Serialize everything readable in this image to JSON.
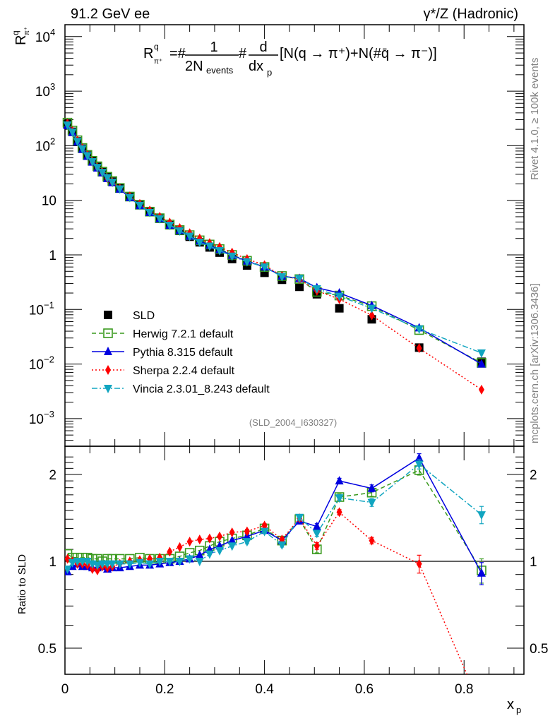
{
  "header": {
    "left": "91.2 GeV ee",
    "right": "γ*/Z (Hadronic)"
  },
  "side_labels": {
    "rivet": "Rivet 4.1.0, ≥ 100k events",
    "mcplots": "mcplots.cern.ch [arXiv:1306.3436]"
  },
  "formula": {
    "lhs": "R",
    "lhs_sup": "q",
    "lhs_sub": "π⁺",
    "eq": "=#",
    "frac1_num": "1",
    "frac1_den": "2N",
    "frac1_den_sub": "events",
    "hash2": "#",
    "frac2_num": "d",
    "frac2_den": "dx",
    "frac2_den_sub": "p",
    "rhs": "[N(q → π⁺)+N(#q̄ → π⁻)]"
  },
  "analysis_id": "(SLD_2004_I630327)",
  "colors": {
    "SLD": "#000000",
    "Herwig": "#3a9a1e",
    "Pythia": "#0000e0",
    "Sherpa": "#ff0000",
    "Vincia": "#11a5c0"
  },
  "chart_data": [
    {
      "type": "scatter",
      "panel": "main",
      "title": "",
      "ylabel": "R^q_{π+}",
      "yscale": "log",
      "ylim": [
        0.0003,
        15000
      ],
      "xlim": [
        0,
        0.92
      ],
      "yticks": [
        {
          "value": 10000,
          "label": "10",
          "exp": "4"
        },
        {
          "value": 1000,
          "label": "10",
          "exp": "3"
        },
        {
          "value": 100,
          "label": "10",
          "exp": "2"
        },
        {
          "value": 10,
          "label": "10",
          "exp": ""
        },
        {
          "value": 1,
          "label": "1",
          "exp": ""
        },
        {
          "value": 0.1,
          "label": "10",
          "exp": "−1"
        },
        {
          "value": 0.01,
          "label": "10",
          "exp": "−2"
        },
        {
          "value": 0.001,
          "label": "10",
          "exp": "−3"
        }
      ],
      "legend": {
        "placement": "bottom-left",
        "entries": [
          {
            "key": "SLD",
            "label": "SLD",
            "marker": "square",
            "line": "none"
          },
          {
            "key": "Herwig",
            "label": "Herwig 7.2.1 default",
            "marker": "open-square",
            "line": "dashed"
          },
          {
            "key": "Pythia",
            "label": "Pythia 8.315 default",
            "marker": "triangle-up",
            "line": "solid"
          },
          {
            "key": "Sherpa",
            "label": "Sherpa 2.2.4 default",
            "marker": "diamond",
            "line": "dotted"
          },
          {
            "key": "Vincia",
            "label": "Vincia 2.3.01_8.243 default",
            "marker": "triangle-down",
            "line": "dashdot"
          }
        ]
      },
      "x": [
        0.005,
        0.015,
        0.025,
        0.035,
        0.045,
        0.055,
        0.065,
        0.075,
        0.085,
        0.095,
        0.11,
        0.13,
        0.15,
        0.17,
        0.19,
        0.21,
        0.23,
        0.25,
        0.27,
        0.29,
        0.31,
        0.335,
        0.365,
        0.4,
        0.435,
        0.47,
        0.505,
        0.55,
        0.615,
        0.71,
        0.835
      ],
      "series": [
        {
          "name": "SLD",
          "values": [
            250,
            180,
            120,
            88,
            66,
            52,
            41,
            33,
            26.5,
            22,
            16.5,
            11.5,
            8.2,
            6.1,
            4.6,
            3.5,
            2.75,
            2.15,
            1.7,
            1.37,
            1.1,
            0.84,
            0.64,
            0.47,
            0.35,
            0.26,
            0.19,
            0.105,
            0.066,
            0.02,
            0.011
          ]
        },
        {
          "name": "Herwig",
          "values": [
            265,
            190,
            126,
            91,
            68,
            53,
            42,
            33.5,
            27,
            22.5,
            16.8,
            11.7,
            8.3,
            6.2,
            4.7,
            3.6,
            2.85,
            2.3,
            1.85,
            1.55,
            1.28,
            1.0,
            0.78,
            0.6,
            0.41,
            0.36,
            0.21,
            0.18,
            0.115,
            0.042,
            0.0105
          ]
        },
        {
          "name": "Pythia",
          "values": [
            235,
            175,
            118,
            86,
            64,
            50,
            39,
            32,
            25,
            21,
            16,
            11.2,
            8.0,
            6.0,
            4.6,
            3.5,
            2.8,
            2.2,
            1.8,
            1.5,
            1.25,
            0.98,
            0.77,
            0.6,
            0.41,
            0.37,
            0.25,
            0.2,
            0.118,
            0.046,
            0.01
          ]
        },
        {
          "name": "Sherpa",
          "values": [
            255,
            185,
            125,
            90,
            67,
            51,
            40,
            32.5,
            25.5,
            21.5,
            16.5,
            11.8,
            8.6,
            6.5,
            5.0,
            3.9,
            3.1,
            2.5,
            2.0,
            1.65,
            1.4,
            1.1,
            0.84,
            0.65,
            0.41,
            0.36,
            0.22,
            0.155,
            0.078,
            0.0195,
            0.0034
          ]
        },
        {
          "name": "Vincia",
          "values": [
            240,
            178,
            120,
            88,
            66,
            51,
            40,
            32.5,
            26,
            21.5,
            16.2,
            11.3,
            8.1,
            6.0,
            4.6,
            3.5,
            2.75,
            2.2,
            1.7,
            1.45,
            1.2,
            0.95,
            0.75,
            0.6,
            0.4,
            0.37,
            0.24,
            0.175,
            0.105,
            0.044,
            0.016
          ]
        }
      ]
    },
    {
      "type": "scatter",
      "panel": "ratio",
      "ylabel": "Ratio to SLD",
      "xlabel": "x_p",
      "yscale": "log",
      "ylim": [
        0.42,
        2.35
      ],
      "xlim": [
        0,
        0.92
      ],
      "xticks": [
        "0",
        "0.2",
        "0.4",
        "0.6",
        "0.8"
      ],
      "xtick_values": [
        0,
        0.2,
        0.4,
        0.6,
        0.8
      ],
      "yticks": [
        {
          "value": 0.5,
          "label": "0.5"
        },
        {
          "value": 1,
          "label": "1"
        },
        {
          "value": 2,
          "label": "2"
        }
      ],
      "reference_line": 1,
      "x": [
        0.005,
        0.015,
        0.025,
        0.035,
        0.045,
        0.055,
        0.065,
        0.075,
        0.085,
        0.095,
        0.11,
        0.13,
        0.15,
        0.17,
        0.19,
        0.21,
        0.23,
        0.25,
        0.27,
        0.29,
        0.31,
        0.335,
        0.365,
        0.4,
        0.435,
        0.47,
        0.505,
        0.55,
        0.615,
        0.71,
        0.835
      ],
      "series": [
        {
          "name": "Herwig",
          "values": [
            1.06,
            1.03,
            1.03,
            1.03,
            1.03,
            1.02,
            1.02,
            1.0,
            1.02,
            1.02,
            1.02,
            1.02,
            1.03,
            1.02,
            1.02,
            1.02,
            1.04,
            1.07,
            1.09,
            1.13,
            1.17,
            1.2,
            1.23,
            1.3,
            1.18,
            1.4,
            1.1,
            1.67,
            1.73,
            2.07,
            0.93
          ],
          "errors": [
            0.01,
            0.01,
            0.01,
            0.01,
            0.01,
            0.01,
            0.01,
            0.01,
            0.01,
            0.01,
            0.01,
            0.01,
            0.01,
            0.01,
            0.01,
            0.01,
            0.01,
            0.01,
            0.01,
            0.01,
            0.01,
            0.01,
            0.02,
            0.02,
            0.02,
            0.03,
            0.03,
            0.04,
            0.05,
            0.08,
            0.09
          ]
        },
        {
          "name": "Pythia",
          "values": [
            0.92,
            0.96,
            0.98,
            0.96,
            0.96,
            0.95,
            0.95,
            0.96,
            0.94,
            0.95,
            0.95,
            0.96,
            0.97,
            0.97,
            0.98,
            0.99,
            1.0,
            1.02,
            1.05,
            1.1,
            1.13,
            1.18,
            1.22,
            1.28,
            1.18,
            1.38,
            1.32,
            1.9,
            1.79,
            2.28,
            0.91
          ],
          "errors": [
            0.01,
            0.01,
            0.01,
            0.01,
            0.01,
            0.01,
            0.01,
            0.01,
            0.01,
            0.01,
            0.01,
            0.01,
            0.01,
            0.01,
            0.01,
            0.01,
            0.01,
            0.01,
            0.01,
            0.01,
            0.01,
            0.01,
            0.02,
            0.02,
            0.02,
            0.03,
            0.03,
            0.04,
            0.05,
            0.08,
            0.08
          ]
        },
        {
          "name": "Sherpa",
          "values": [
            1.02,
            1.0,
            0.98,
            0.98,
            0.97,
            0.94,
            0.93,
            0.96,
            0.95,
            0.96,
            0.98,
            1.0,
            1.01,
            1.02,
            1.03,
            1.08,
            1.12,
            1.17,
            1.19,
            1.2,
            1.22,
            1.26,
            1.27,
            1.33,
            1.19,
            1.41,
            1.13,
            1.48,
            1.18,
            0.98,
            0.31
          ],
          "errors": [
            0.01,
            0.01,
            0.01,
            0.01,
            0.01,
            0.01,
            0.01,
            0.01,
            0.01,
            0.01,
            0.01,
            0.01,
            0.01,
            0.01,
            0.01,
            0.01,
            0.01,
            0.01,
            0.01,
            0.01,
            0.01,
            0.01,
            0.02,
            0.02,
            0.02,
            0.03,
            0.03,
            0.03,
            0.03,
            0.07,
            0.05
          ]
        },
        {
          "name": "Vincia",
          "values": [
            0.94,
            0.99,
            1.0,
            1.0,
            1.0,
            0.98,
            0.97,
            0.98,
            0.98,
            0.98,
            0.98,
            0.98,
            0.99,
            0.98,
            1.0,
            1.0,
            1.0,
            1.02,
            1.0,
            1.06,
            1.09,
            1.13,
            1.17,
            1.27,
            1.14,
            1.42,
            1.25,
            1.66,
            1.6,
            2.17,
            1.45
          ],
          "errors": [
            0.01,
            0.01,
            0.01,
            0.01,
            0.01,
            0.01,
            0.01,
            0.01,
            0.01,
            0.01,
            0.01,
            0.01,
            0.01,
            0.01,
            0.01,
            0.01,
            0.01,
            0.01,
            0.01,
            0.01,
            0.01,
            0.01,
            0.02,
            0.02,
            0.02,
            0.03,
            0.03,
            0.04,
            0.05,
            0.08,
            0.1
          ]
        }
      ]
    }
  ]
}
